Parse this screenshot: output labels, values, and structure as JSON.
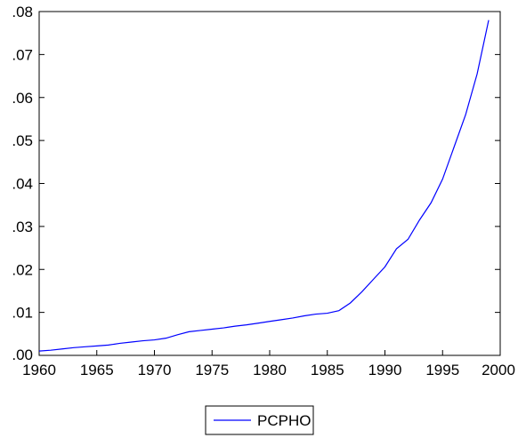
{
  "chart_data": {
    "type": "line",
    "title": "",
    "xlabel": "",
    "ylabel": "",
    "xlim": [
      1960,
      2000
    ],
    "ylim": [
      0.0,
      0.08
    ],
    "x_ticks": [
      1960,
      1965,
      1970,
      1975,
      1980,
      1985,
      1990,
      1995,
      2000
    ],
    "x_tick_labels": [
      "1960",
      "1965",
      "1970",
      "1975",
      "1980",
      "1985",
      "1990",
      "1995",
      "2000"
    ],
    "y_ticks": [
      0.0,
      0.01,
      0.02,
      0.03,
      0.04,
      0.05,
      0.06,
      0.07,
      0.08
    ],
    "y_tick_labels": [
      ".00",
      ".01",
      ".02",
      ".03",
      ".04",
      ".05",
      ".06",
      ".07",
      ".08"
    ],
    "grid": false,
    "legend_position": "bottom-center",
    "series": [
      {
        "name": "PCPHO",
        "color": "#0000ff",
        "x": [
          1960,
          1961,
          1962,
          1963,
          1964,
          1965,
          1966,
          1967,
          1968,
          1969,
          1970,
          1971,
          1972,
          1973,
          1974,
          1975,
          1976,
          1977,
          1978,
          1979,
          1980,
          1981,
          1982,
          1983,
          1984,
          1985,
          1986,
          1987,
          1988,
          1989,
          1990,
          1991,
          1992,
          1993,
          1994,
          1995,
          1996,
          1997,
          1998,
          1999
        ],
        "values": [
          0.001,
          0.0012,
          0.0015,
          0.0018,
          0.002,
          0.0022,
          0.0024,
          0.0028,
          0.0031,
          0.0034,
          0.0036,
          0.004,
          0.0048,
          0.0055,
          0.0058,
          0.0061,
          0.0064,
          0.0068,
          0.0071,
          0.0075,
          0.0079,
          0.0083,
          0.0087,
          0.0092,
          0.0096,
          0.0098,
          0.0104,
          0.0122,
          0.0148,
          0.0177,
          0.0206,
          0.0248,
          0.027,
          0.0315,
          0.0355,
          0.041,
          0.0485,
          0.056,
          0.0655,
          0.078
        ]
      }
    ]
  }
}
